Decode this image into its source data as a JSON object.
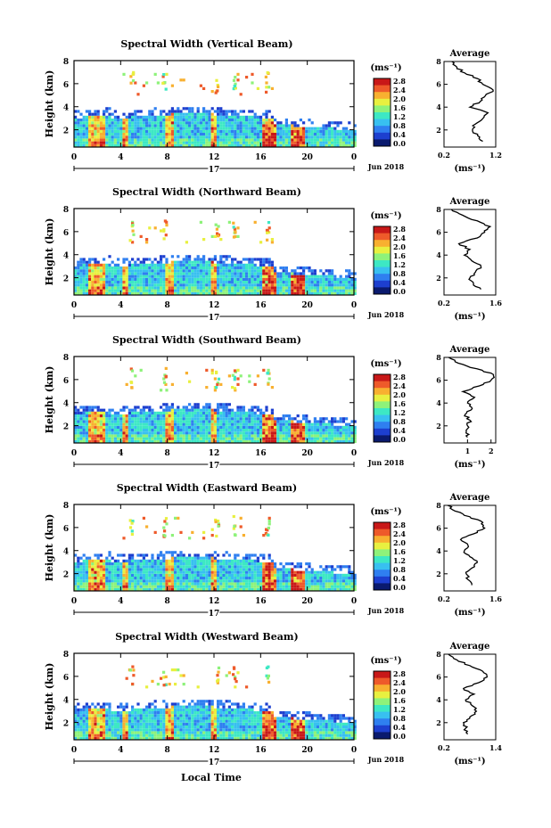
{
  "figure": {
    "local_time_label": "Local Time",
    "colorbar_unit": "(ms⁻¹)",
    "colorbar_ticks": [
      "0.0",
      "0.4",
      "0.8",
      "1.2",
      "1.6",
      "2.0",
      "2.4",
      "2.8"
    ],
    "colorbar_colors": [
      "#0a1a6e",
      "#1d3fcf",
      "#2f7ff0",
      "#38c0f0",
      "#3de8c4",
      "#8ef27a",
      "#e8f040",
      "#f8b030",
      "#ee5a2a",
      "#c81818"
    ],
    "date_label": "Jun 2018",
    "day_label": "17"
  },
  "chart_data": [
    {
      "type": "heatmap",
      "title": "Spectral Width (Vertical Beam)",
      "ylabel": "Height (km)",
      "xlabel": "",
      "x_ticks": [
        "0",
        "4",
        "8",
        "12",
        "16",
        "20",
        "0"
      ],
      "y_ticks": [
        "2",
        "4",
        "6",
        "8"
      ],
      "xlim": [
        0,
        24
      ],
      "ylim": [
        0.5,
        8
      ],
      "profile": {
        "title": "Average",
        "xlabel": "(ms⁻¹)",
        "x_ticks": [
          "0.2",
          "1.2"
        ],
        "xlim": [
          0.2,
          1.2
        ],
        "y_ticks": [
          "2",
          "4",
          "6",
          "8"
        ],
        "heights": [
          1,
          1.5,
          2,
          2.5,
          3,
          3.5,
          4,
          4.5,
          5,
          5.5,
          6,
          6.5,
          7,
          7.5,
          8
        ],
        "values": [
          0.95,
          0.85,
          0.75,
          0.8,
          0.95,
          1.05,
          0.7,
          0.9,
          1.0,
          1.15,
          0.95,
          0.85,
          0.6,
          0.45,
          0.35
        ]
      }
    },
    {
      "type": "heatmap",
      "title": "Spectral Width (Northward Beam)",
      "ylabel": "Height (km)",
      "xlabel": "",
      "x_ticks": [
        "0",
        "4",
        "8",
        "12",
        "16",
        "20",
        "0"
      ],
      "y_ticks": [
        "2",
        "4",
        "6",
        "8"
      ],
      "xlim": [
        0,
        24
      ],
      "ylim": [
        0.5,
        8
      ],
      "profile": {
        "title": "Average",
        "xlabel": "(ms⁻¹)",
        "x_ticks": [
          "0.2",
          "1.6"
        ],
        "xlim": [
          0.2,
          1.6
        ],
        "y_ticks": [
          "2",
          "4",
          "6",
          "8"
        ],
        "heights": [
          1,
          1.5,
          2,
          2.5,
          3,
          3.5,
          4,
          4.5,
          5,
          5.5,
          6,
          6.5,
          7,
          7.5,
          8
        ],
        "values": [
          1.2,
          1.0,
          0.9,
          1.05,
          1.2,
          0.95,
          0.75,
          0.9,
          0.6,
          1.1,
          1.3,
          1.45,
          1.1,
          0.7,
          0.4
        ]
      }
    },
    {
      "type": "heatmap",
      "title": "Spectral Width (Southward Beam)",
      "ylabel": "Height (km)",
      "xlabel": "",
      "x_ticks": [
        "0",
        "4",
        "8",
        "12",
        "16",
        "20",
        "0"
      ],
      "y_ticks": [
        "2",
        "4",
        "6",
        "8"
      ],
      "xlim": [
        0,
        24
      ],
      "ylim": [
        0.5,
        8
      ],
      "profile": {
        "title": "Average",
        "xlabel": "(ms⁻¹)",
        "x_ticks": [
          "1",
          "2"
        ],
        "xlim": [
          0,
          2.2
        ],
        "y_ticks": [
          "2",
          "4",
          "6",
          "8"
        ],
        "heights": [
          1,
          1.5,
          2,
          2.5,
          3,
          3.5,
          4,
          4.5,
          5,
          5.5,
          6,
          6.5,
          7,
          7.5,
          8
        ],
        "values": [
          1.0,
          0.95,
          1.0,
          1.1,
          0.9,
          1.2,
          1.0,
          1.3,
          0.8,
          1.5,
          2.0,
          2.1,
          1.4,
          0.6,
          0.2
        ]
      }
    },
    {
      "type": "heatmap",
      "title": "Spectral Width (Eastward Beam)",
      "ylabel": "Height (km)",
      "xlabel": "",
      "x_ticks": [
        "0",
        "4",
        "8",
        "12",
        "16",
        "20",
        "0"
      ],
      "y_ticks": [
        "2",
        "4",
        "6",
        "8"
      ],
      "xlim": [
        0,
        24
      ],
      "ylim": [
        0.5,
        8
      ],
      "profile": {
        "title": "Average",
        "xlabel": "(ms⁻¹)",
        "x_ticks": [
          "0.2",
          "1.6"
        ],
        "xlim": [
          0.2,
          1.6
        ],
        "y_ticks": [
          "2",
          "4",
          "6",
          "8"
        ],
        "heights": [
          1,
          1.5,
          2,
          2.5,
          3,
          3.5,
          4,
          4.5,
          5,
          5.5,
          6,
          6.5,
          7,
          7.5,
          8
        ],
        "values": [
          0.95,
          0.85,
          0.8,
          0.95,
          1.1,
          0.9,
          0.75,
          0.85,
          0.65,
          1.0,
          1.3,
          1.25,
          0.9,
          0.5,
          0.3
        ]
      }
    },
    {
      "type": "heatmap",
      "title": "Spectral Width (Westward Beam)",
      "ylabel": "Height (km)",
      "xlabel": "Local Time",
      "x_ticks": [
        "0",
        "4",
        "8",
        "12",
        "16",
        "20",
        "0"
      ],
      "y_ticks": [
        "2",
        "4",
        "6",
        "8"
      ],
      "xlim": [
        0,
        24
      ],
      "ylim": [
        0.5,
        8
      ],
      "profile": {
        "title": "Average",
        "xlabel": "(ms⁻¹)",
        "x_ticks": [
          "0.2",
          "1.4"
        ],
        "xlim": [
          0.2,
          1.4
        ],
        "y_ticks": [
          "2",
          "4",
          "6",
          "8"
        ],
        "heights": [
          1,
          1.5,
          2,
          2.5,
          3,
          3.5,
          4,
          4.5,
          5,
          5.5,
          6,
          6.5,
          7,
          7.5,
          8
        ],
        "values": [
          0.75,
          0.7,
          0.65,
          0.8,
          0.95,
          0.85,
          0.7,
          0.9,
          0.65,
          1.0,
          1.2,
          1.1,
          0.8,
          0.5,
          0.3
        ]
      }
    }
  ]
}
